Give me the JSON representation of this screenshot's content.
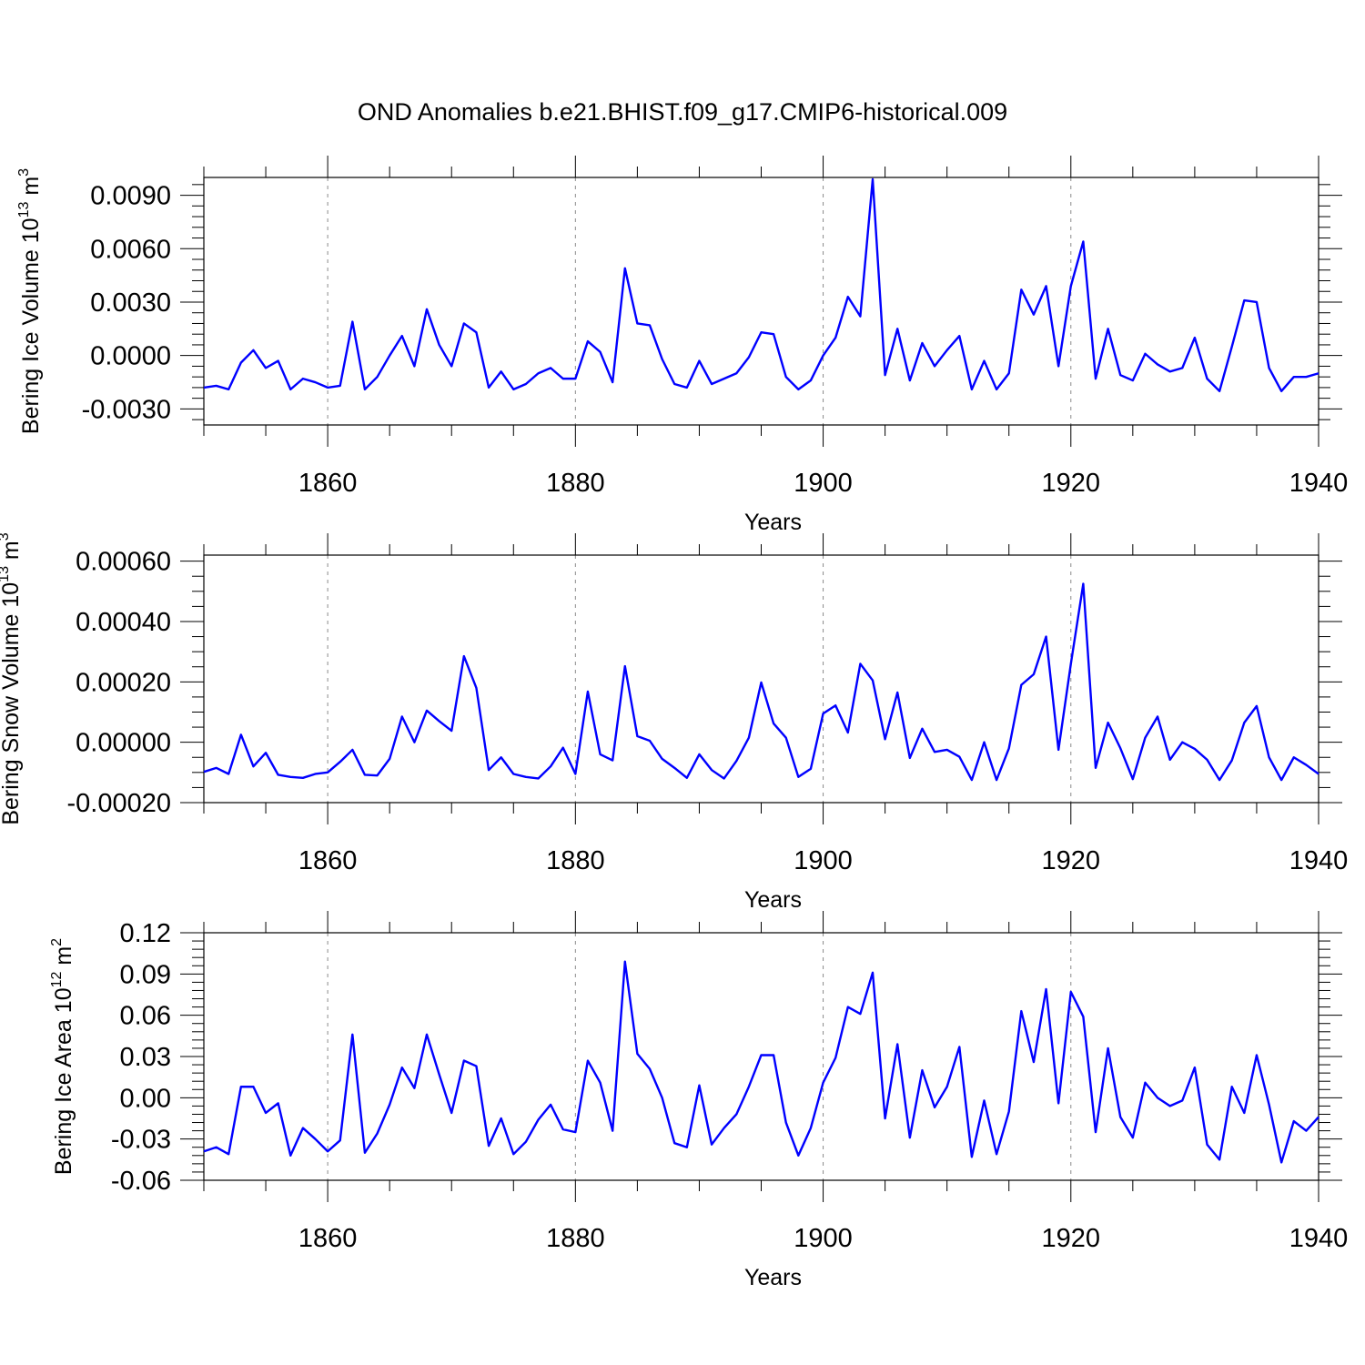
{
  "title": "OND Anomalies b.e21.BHIST.f09_g17.CMIP6-historical.009",
  "line_color": "#0000ff",
  "chart_data": [
    {
      "type": "line",
      "ylabel_main": "Bering Ice Volume 10",
      "ylabel_exp": "13",
      "ylabel_unit": " m",
      "ylabel_unit_exp": "3",
      "xlabel": "Years",
      "xlim": [
        1850,
        1940
      ],
      "ylim": [
        -0.0039,
        0.01
      ],
      "yticks": [
        -0.003,
        0.0,
        0.003,
        0.006,
        0.009
      ],
      "ytick_labels": [
        "-0.0030",
        "0.0000",
        "0.0030",
        "0.0060",
        "0.0090"
      ],
      "yminor": 0.0006,
      "xticks": [
        1860,
        1880,
        1900,
        1920,
        1940
      ],
      "xtick_labels": [
        "1860",
        "1880",
        "1900",
        "1920",
        "1940"
      ],
      "series": [
        {
          "name": "Bering Ice Volume",
          "x_start": 1850,
          "values": [
            -0.0018,
            -0.0017,
            -0.0019,
            -0.0004,
            0.0003,
            -0.0007,
            -0.0003,
            -0.0019,
            -0.0013,
            -0.0015,
            -0.0018,
            -0.0017,
            0.0019,
            -0.0019,
            -0.0012,
            0.0,
            0.0011,
            -0.0006,
            0.0026,
            0.0006,
            -0.0006,
            0.0018,
            0.0013,
            -0.0018,
            -0.0009,
            -0.0019,
            -0.0016,
            -0.001,
            -0.0007,
            -0.0013,
            -0.0013,
            0.0008,
            0.0002,
            -0.0015,
            0.0049,
            0.0018,
            0.0017,
            -0.0002,
            -0.0016,
            -0.0018,
            -0.0003,
            -0.0016,
            -0.0013,
            -0.001,
            -0.0001,
            0.0013,
            0.0012,
            -0.0012,
            -0.0019,
            -0.0014,
            0.0,
            0.001,
            0.0033,
            0.0022,
            0.0099,
            -0.0011,
            0.0015,
            -0.0014,
            0.0007,
            -0.0006,
            0.0003,
            0.0011,
            -0.0019,
            -0.0003,
            -0.0019,
            -0.001,
            0.0037,
            0.0023,
            0.0039,
            -0.0006,
            0.0039,
            0.0064,
            -0.0013,
            0.0015,
            -0.0011,
            -0.0014,
            0.0001,
            -0.0005,
            -0.0009,
            -0.0007,
            0.001,
            -0.0013,
            -0.002,
            0.0005,
            0.0031,
            0.003,
            -0.0007,
            -0.002,
            -0.0012,
            -0.0012,
            -0.001
          ]
        }
      ]
    },
    {
      "type": "line",
      "ylabel_main": "Bering Snow Volume 10",
      "ylabel_exp": "13",
      "ylabel_unit": " m",
      "ylabel_unit_exp": "3",
      "xlabel": "Years",
      "xlim": [
        1850,
        1940
      ],
      "ylim": [
        -0.0002,
        0.00062
      ],
      "yticks": [
        -0.0002,
        0.0,
        0.0002,
        0.0004,
        0.0006
      ],
      "ytick_labels": [
        "-0.00020",
        "0.00000",
        "0.00020",
        "0.00040",
        "0.00060"
      ],
      "yminor": 5e-05,
      "xticks": [
        1860,
        1880,
        1900,
        1920,
        1940
      ],
      "xtick_labels": [
        "1860",
        "1880",
        "1900",
        "1920",
        "1940"
      ],
      "series": [
        {
          "name": "Bering Snow Volume",
          "x_start": 1850,
          "values": [
            -9.8e-05,
            -8.5e-05,
            -0.000105,
            2.5e-05,
            -8e-05,
            -3.5e-05,
            -0.000108,
            -0.000115,
            -0.000118,
            -0.000105,
            -0.0001,
            -6.5e-05,
            -2.5e-05,
            -0.000108,
            -0.00011,
            -5.5e-05,
            8.5e-05,
            0.0,
            0.000105,
            7e-05,
            3.8e-05,
            0.000285,
            0.00018,
            -9.2e-05,
            -5e-05,
            -0.000105,
            -0.000115,
            -0.00012,
            -8e-05,
            -1.8e-05,
            -0.000105,
            0.000168,
            -4e-05,
            -6e-05,
            0.000252,
            2e-05,
            5e-06,
            -5.5e-05,
            -8.5e-05,
            -0.000118,
            -4e-05,
            -9.2e-05,
            -0.00012,
            -6.2e-05,
            1.5e-05,
            0.000198,
            6.2e-05,
            1.5e-05,
            -0.000115,
            -8.8e-05,
            9.5e-05,
            0.000122,
            3.2e-05,
            0.00026,
            0.000205,
            1e-05,
            0.000165,
            -5.2e-05,
            4.5e-05,
            -3.2e-05,
            -2.5e-05,
            -4.8e-05,
            -0.000125,
            0.0,
            -0.000125,
            -2e-05,
            0.00019,
            0.000225,
            0.00035,
            -2.5e-05,
            0.00026,
            0.000525,
            -8.5e-05,
            6.5e-05,
            -2e-05,
            -0.000122,
            1.5e-05,
            8.5e-05,
            -5.8e-05,
            0.0,
            -2.2e-05,
            -5.8e-05,
            -0.000125,
            -6e-05,
            6.5e-05,
            0.00012,
            -5e-05,
            -0.000125,
            -5e-05,
            -7.5e-05,
            -0.000105
          ]
        }
      ]
    },
    {
      "type": "line",
      "ylabel_main": "Bering Ice Area 10",
      "ylabel_exp": "12",
      "ylabel_unit": " m",
      "ylabel_unit_exp": "2",
      "xlabel": "Years",
      "xlim": [
        1850,
        1940
      ],
      "ylim": [
        -0.06,
        0.12
      ],
      "yticks": [
        -0.06,
        -0.03,
        0.0,
        0.03,
        0.06,
        0.09,
        0.12
      ],
      "ytick_labels": [
        "-0.06",
        "-0.03",
        "0.00",
        "0.03",
        "0.06",
        "0.09",
        "0.12"
      ],
      "yminor": 0.006,
      "xticks": [
        1860,
        1880,
        1900,
        1920,
        1940
      ],
      "xtick_labels": [
        "1860",
        "1880",
        "1900",
        "1920",
        "1940"
      ],
      "series": [
        {
          "name": "Bering Ice Area",
          "x_start": 1850,
          "values": [
            -0.039,
            -0.036,
            -0.041,
            0.008,
            0.008,
            -0.011,
            -0.004,
            -0.042,
            -0.022,
            -0.03,
            -0.039,
            -0.031,
            0.046,
            -0.04,
            -0.026,
            -0.005,
            0.022,
            0.007,
            0.046,
            0.017,
            -0.011,
            0.027,
            0.023,
            -0.035,
            -0.015,
            -0.041,
            -0.032,
            -0.016,
            -0.005,
            -0.023,
            -0.025,
            0.027,
            0.011,
            -0.024,
            0.099,
            0.032,
            0.021,
            0.0,
            -0.033,
            -0.036,
            0.009,
            -0.034,
            -0.022,
            -0.012,
            0.008,
            0.031,
            0.031,
            -0.018,
            -0.042,
            -0.022,
            0.011,
            0.029,
            0.066,
            0.061,
            0.091,
            -0.015,
            0.039,
            -0.029,
            0.02,
            -0.007,
            0.008,
            0.037,
            -0.043,
            -0.002,
            -0.041,
            -0.01,
            0.063,
            0.026,
            0.079,
            -0.004,
            0.077,
            0.059,
            -0.025,
            0.036,
            -0.014,
            -0.029,
            0.011,
            0.0,
            -0.006,
            -0.002,
            0.022,
            -0.034,
            -0.045,
            0.008,
            -0.011,
            0.031,
            -0.005,
            -0.047,
            -0.017,
            -0.024,
            -0.014
          ]
        }
      ]
    }
  ]
}
